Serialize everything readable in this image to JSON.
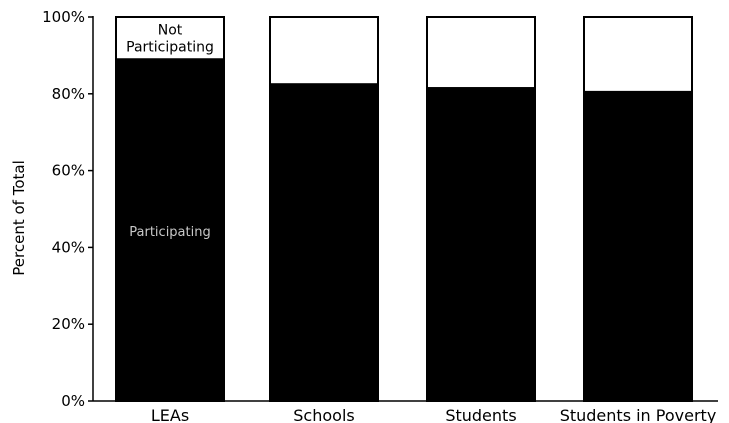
{
  "chart_data": {
    "type": "bar",
    "stacked": true,
    "categories": [
      "LEAs",
      "Schools",
      "Students",
      "Students in Poverty"
    ],
    "series": [
      {
        "name": "Participating",
        "values": [
          89,
          82.5,
          81.5,
          80.5
        ],
        "color": "#000000"
      },
      {
        "name": "Not Participating",
        "values": [
          11,
          17.5,
          18.5,
          19.5
        ],
        "color": "#ffffff"
      }
    ],
    "ylabel": "Percent of Total",
    "ylim": [
      0,
      100
    ],
    "yticks": [
      0,
      20,
      40,
      60,
      80,
      100
    ],
    "ytick_labels": [
      "0%",
      "20%",
      "40%",
      "60%",
      "80%",
      "100%"
    ],
    "annotations": [
      {
        "text": "Not\nParticipating",
        "category": "LEAs",
        "series": "Not Participating",
        "color": "#000000"
      },
      {
        "text": "Participating",
        "category": "LEAs",
        "series": "Participating",
        "color": "#c8c8c8"
      }
    ],
    "grid": false,
    "legend": "none"
  }
}
